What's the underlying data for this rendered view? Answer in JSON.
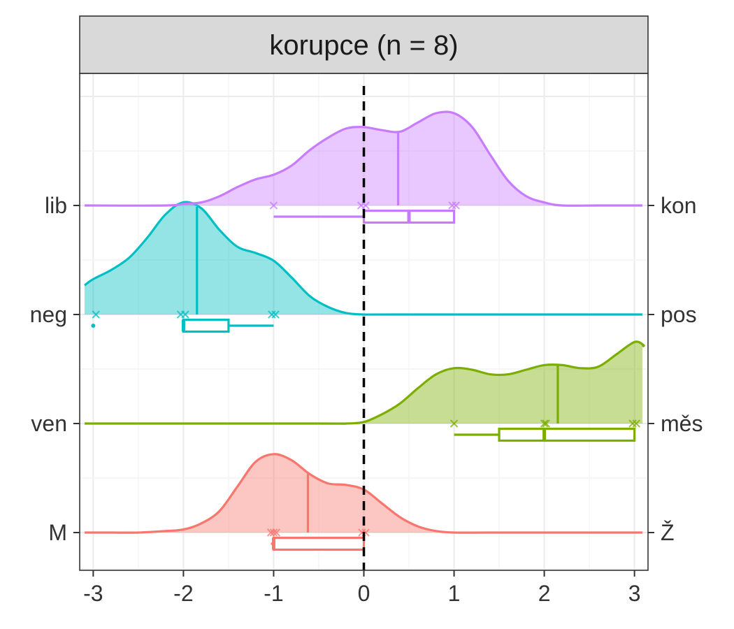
{
  "chart_data": {
    "type": "ridgeline-density",
    "title": "korupce (n = 8)",
    "xlabel": "",
    "ylabel": "",
    "xlim": [
      -3.15,
      3.15
    ],
    "x_ticks": [
      "-3",
      "-2",
      "-1",
      "0",
      "1",
      "2",
      "3"
    ],
    "x_tick_values": [
      -3,
      -2,
      -1,
      0,
      1,
      2,
      3
    ],
    "reference_line": {
      "x": 0,
      "style": "dashed",
      "color": "#000000"
    },
    "grid": true,
    "legend": "none",
    "series": [
      {
        "left_label": "M",
        "right_label": "Ž",
        "color": "#f8766d",
        "points": [
          -1.03,
          -1.0,
          -0.97,
          -0.02,
          0.02
        ],
        "density_mean": -0.62,
        "density": [
          [
            -3.15,
            0
          ],
          [
            -2.8,
            0
          ],
          [
            -2.5,
            0.0
          ],
          [
            -2.2,
            0.01
          ],
          [
            -2.0,
            0.02
          ],
          [
            -1.8,
            0.06
          ],
          [
            -1.6,
            0.14
          ],
          [
            -1.4,
            0.3
          ],
          [
            -1.2,
            0.46
          ],
          [
            -1.0,
            0.51
          ],
          [
            -0.8,
            0.47
          ],
          [
            -0.6,
            0.38
          ],
          [
            -0.4,
            0.32
          ],
          [
            -0.2,
            0.31
          ],
          [
            0.0,
            0.28
          ],
          [
            0.2,
            0.19
          ],
          [
            0.4,
            0.1
          ],
          [
            0.6,
            0.04
          ],
          [
            0.8,
            0.01
          ],
          [
            1.0,
            0.0
          ],
          [
            1.4,
            0
          ],
          [
            3.15,
            0
          ]
        ],
        "box": {
          "min": -1.03,
          "q1": -1.0,
          "median": -1.0,
          "q3": 0.0,
          "max": 0.0
        },
        "outliers": []
      },
      {
        "left_label": "ven",
        "right_label": "měs",
        "color": "#7cae00",
        "points": [
          1.0,
          2.0,
          2.02,
          2.98,
          3.02
        ],
        "density_mean": 2.15,
        "density": [
          [
            -3.15,
            0
          ],
          [
            -0.5,
            0
          ],
          [
            -0.2,
            0.0
          ],
          [
            0.0,
            0.01
          ],
          [
            0.2,
            0.06
          ],
          [
            0.4,
            0.13
          ],
          [
            0.6,
            0.23
          ],
          [
            0.8,
            0.32
          ],
          [
            1.0,
            0.36
          ],
          [
            1.2,
            0.35
          ],
          [
            1.4,
            0.32
          ],
          [
            1.6,
            0.32
          ],
          [
            1.8,
            0.35
          ],
          [
            2.0,
            0.38
          ],
          [
            2.2,
            0.38
          ],
          [
            2.4,
            0.36
          ],
          [
            2.6,
            0.37
          ],
          [
            2.8,
            0.45
          ],
          [
            3.0,
            0.53
          ],
          [
            3.1,
            0.51
          ],
          [
            3.15,
            0.5
          ]
        ],
        "box": {
          "min": 1.0,
          "q1": 1.5,
          "median": 2.0,
          "q3": 3.0,
          "max": 3.0
        },
        "outliers": []
      },
      {
        "left_label": "neg",
        "right_label": "pos",
        "color": "#00bfc4",
        "points": [
          -2.97,
          -2.03,
          -1.98,
          -1.02,
          -0.98
        ],
        "density_mean": -1.85,
        "density": [
          [
            -3.15,
            0.19
          ],
          [
            -3.0,
            0.23
          ],
          [
            -2.8,
            0.29
          ],
          [
            -2.6,
            0.37
          ],
          [
            -2.4,
            0.5
          ],
          [
            -2.2,
            0.65
          ],
          [
            -2.0,
            0.73
          ],
          [
            -1.8,
            0.69
          ],
          [
            -1.6,
            0.55
          ],
          [
            -1.4,
            0.44
          ],
          [
            -1.2,
            0.4
          ],
          [
            -1.0,
            0.35
          ],
          [
            -0.8,
            0.24
          ],
          [
            -0.6,
            0.12
          ],
          [
            -0.4,
            0.05
          ],
          [
            -0.2,
            0.01
          ],
          [
            0.0,
            0.0
          ],
          [
            0.3,
            0
          ],
          [
            3.15,
            0
          ]
        ],
        "box": {
          "min": -2.0,
          "q1": -2.0,
          "median": -2.0,
          "q3": -1.5,
          "max": -1.0
        },
        "outliers": [
          -3.0
        ]
      },
      {
        "left_label": "lib",
        "right_label": "kon",
        "color": "#c77cff",
        "points": [
          -1.0,
          -0.03,
          0.02,
          0.98,
          1.02
        ],
        "density_mean": 0.38,
        "density": [
          [
            -3.15,
            0
          ],
          [
            -2.2,
            0
          ],
          [
            -2.0,
            0.01
          ],
          [
            -1.8,
            0.02
          ],
          [
            -1.6,
            0.06
          ],
          [
            -1.4,
            0.12
          ],
          [
            -1.2,
            0.17
          ],
          [
            -1.0,
            0.2
          ],
          [
            -0.8,
            0.26
          ],
          [
            -0.6,
            0.36
          ],
          [
            -0.4,
            0.44
          ],
          [
            -0.2,
            0.5
          ],
          [
            0.0,
            0.51
          ],
          [
            0.2,
            0.49
          ],
          [
            0.4,
            0.48
          ],
          [
            0.6,
            0.54
          ],
          [
            0.8,
            0.6
          ],
          [
            1.0,
            0.6
          ],
          [
            1.2,
            0.51
          ],
          [
            1.4,
            0.33
          ],
          [
            1.6,
            0.16
          ],
          [
            1.8,
            0.06
          ],
          [
            2.0,
            0.02
          ],
          [
            2.2,
            0.0
          ],
          [
            2.6,
            0
          ],
          [
            3.15,
            0
          ]
        ],
        "box": {
          "min": -1.0,
          "q1": 0.0,
          "median": 0.5,
          "q3": 1.0,
          "max": 1.0
        },
        "outliers": []
      }
    ]
  }
}
